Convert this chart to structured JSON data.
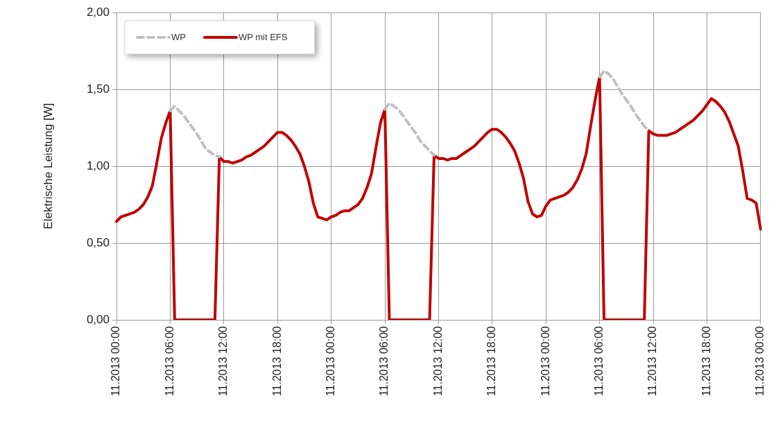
{
  "chart_data": {
    "type": "line",
    "ylabel": "Elektrische Leistung [W]",
    "categories": [
      "11.2013 00:00",
      null,
      null,
      null,
      null,
      null,
      null,
      null,
      null,
      null,
      null,
      null,
      "11.2013 06:00",
      null,
      null,
      null,
      null,
      null,
      null,
      null,
      null,
      null,
      null,
      null,
      "11.2013 12:00",
      null,
      null,
      null,
      null,
      null,
      null,
      null,
      null,
      null,
      null,
      null,
      "11.2013 18:00",
      null,
      null,
      null,
      null,
      null,
      null,
      null,
      null,
      null,
      null,
      null,
      "11.2013 00:00",
      null,
      null,
      null,
      null,
      null,
      null,
      null,
      null,
      null,
      null,
      null,
      "11.2013 06:00",
      null,
      null,
      null,
      null,
      null,
      null,
      null,
      null,
      null,
      null,
      null,
      "11.2013 12:00",
      null,
      null,
      null,
      null,
      null,
      null,
      null,
      null,
      null,
      null,
      null,
      "11.2013 18:00",
      null,
      null,
      null,
      null,
      null,
      null,
      null,
      null,
      null,
      null,
      null,
      "11.2013 00:00",
      null,
      null,
      null,
      null,
      null,
      null,
      null,
      null,
      null,
      null,
      null,
      "11.2013 06:00",
      null,
      null,
      null,
      null,
      null,
      null,
      null,
      null,
      null,
      null,
      null,
      "11.2013 12:00",
      null,
      null,
      null,
      null,
      null,
      null,
      null,
      null,
      null,
      null,
      null,
      "11.2013 18:00",
      null,
      null,
      null,
      null,
      null,
      null,
      null,
      null,
      null,
      null,
      null,
      "11.2013 00:00"
    ],
    "ylim": [
      0,
      2
    ],
    "yticks": [
      {
        "value": 0,
        "label": "0,00"
      },
      {
        "value": 0.5,
        "label": "0,50"
      },
      {
        "value": 1,
        "label": "1,00"
      },
      {
        "value": 1.5,
        "label": "1,50"
      },
      {
        "value": 2,
        "label": "2,00"
      }
    ],
    "grid": true,
    "legend": "top left",
    "marker": "none",
    "series": [
      {
        "name": "WP",
        "color": "#c0c0c0",
        "line_style": "dashed",
        "values": [
          null,
          null,
          null,
          null,
          null,
          null,
          null,
          null,
          null,
          null,
          null,
          null,
          1.36,
          1.39,
          1.36,
          1.33,
          1.29,
          1.25,
          1.21,
          1.16,
          1.11,
          1.09,
          1.07,
          1.06,
          null,
          null,
          null,
          null,
          null,
          null,
          null,
          null,
          null,
          null,
          null,
          null,
          null,
          null,
          null,
          null,
          null,
          null,
          null,
          null,
          null,
          null,
          null,
          null,
          null,
          null,
          null,
          null,
          null,
          null,
          null,
          null,
          null,
          null,
          null,
          null,
          1.37,
          1.41,
          1.39,
          1.37,
          1.33,
          1.29,
          1.25,
          1.21,
          1.16,
          1.13,
          1.1,
          1.07,
          null,
          null,
          null,
          null,
          null,
          null,
          null,
          null,
          null,
          null,
          null,
          null,
          null,
          null,
          null,
          null,
          null,
          null,
          null,
          null,
          null,
          null,
          null,
          null,
          null,
          null,
          null,
          null,
          null,
          null,
          null,
          null,
          null,
          null,
          null,
          null,
          1.58,
          1.62,
          1.6,
          1.57,
          1.52,
          1.47,
          1.43,
          1.39,
          1.34,
          1.3,
          1.26,
          1.23,
          null,
          null,
          null,
          null,
          null,
          null,
          null,
          null,
          null,
          null,
          null,
          null,
          null,
          null,
          null,
          null,
          null,
          null,
          null,
          null,
          null,
          null,
          null,
          null,
          null
        ]
      },
      {
        "name": "WP mit EFS",
        "color": "#c00000",
        "line_style": "solid",
        "values": [
          0.64,
          0.67,
          0.68,
          0.69,
          0.7,
          0.72,
          0.75,
          0.8,
          0.87,
          1.02,
          1.18,
          1.28,
          1.36,
          0,
          0,
          0,
          0,
          0,
          0,
          0,
          0,
          0,
          0,
          1.06,
          1.03,
          1.03,
          1.02,
          1.03,
          1.04,
          1.06,
          1.07,
          1.09,
          1.11,
          1.13,
          1.16,
          1.19,
          1.22,
          1.22,
          1.2,
          1.17,
          1.13,
          1.08,
          1.0,
          0.9,
          0.76,
          0.67,
          0.66,
          0.65,
          0.67,
          0.68,
          0.7,
          0.71,
          0.71,
          0.73,
          0.75,
          0.79,
          0.86,
          0.95,
          1.12,
          1.28,
          1.37,
          0,
          0,
          0,
          0,
          0,
          0,
          0,
          0,
          0,
          0,
          1.07,
          1.05,
          1.05,
          1.04,
          1.05,
          1.05,
          1.07,
          1.09,
          1.11,
          1.13,
          1.16,
          1.19,
          1.22,
          1.24,
          1.24,
          1.22,
          1.19,
          1.15,
          1.1,
          1.02,
          0.92,
          0.77,
          0.69,
          0.67,
          0.68,
          0.74,
          0.78,
          0.79,
          0.8,
          0.81,
          0.83,
          0.86,
          0.91,
          0.98,
          1.08,
          1.26,
          1.43,
          1.58,
          0,
          0,
          0,
          0,
          0,
          0,
          0,
          0,
          0,
          0,
          1.23,
          1.21,
          1.2,
          1.2,
          1.2,
          1.21,
          1.22,
          1.24,
          1.26,
          1.28,
          1.3,
          1.33,
          1.36,
          1.4,
          1.44,
          1.42,
          1.39,
          1.35,
          1.29,
          1.21,
          1.13,
          0.97,
          0.79,
          0.78,
          0.76,
          0.59
        ]
      }
    ]
  }
}
